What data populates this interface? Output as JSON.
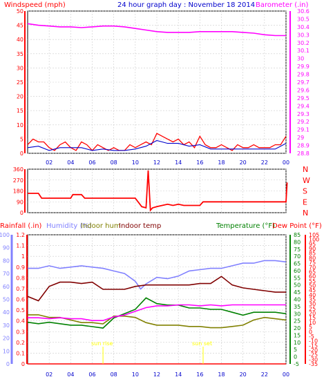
{
  "colors": {
    "wind": "#ff0000",
    "gust_blue": "#0000cc",
    "barometer": "#ff00ff",
    "humidity": "#8080ff",
    "indoor_hum": "#808000",
    "indoor_temp": "#800000",
    "temperature": "#008000",
    "dew_point": "#ff0000",
    "rainfall": "#ff0000",
    "grid": "#cccccc",
    "axis": "#000000",
    "title": "#0000cc",
    "sun_marker": "#ffff00"
  },
  "header": {
    "windspeed_label": "Windspeed (mph)",
    "title": "24 hour graph day : November 18 2014",
    "barometer_label": "Barometer (.in)"
  },
  "legend": {
    "rainfall": "Rainfall (.in)",
    "humidity": "Humidity (%)",
    "indoor_hum": "Indoor hum",
    "indoor_temp": "Indoor temp",
    "temperature": "Temperature (°F)",
    "dew_point": "Dew Point (°F)"
  },
  "x_ticks": [
    "02",
    "04",
    "06",
    "08",
    "10",
    "12",
    "14",
    "16",
    "18",
    "20",
    "22",
    "00"
  ],
  "markers": {
    "sunrise": "sun rise",
    "sunset": "sun set"
  },
  "chart_data": [
    {
      "type": "line",
      "title": "24 hour graph day : November 18 2014",
      "x_range": [
        0,
        24
      ],
      "y_left": {
        "label": "Windspeed (mph)",
        "range": [
          0,
          50
        ],
        "ticks": [
          "0",
          "5",
          "10",
          "15",
          "20",
          "25",
          "30",
          "35",
          "40",
          "45",
          "50"
        ]
      },
      "y_right": {
        "label": "Barometer (.in)",
        "range": [
          28.8,
          30.6
        ],
        "ticks": [
          "28.8",
          "28.9",
          "29",
          "29.1",
          "29.2",
          "29.3",
          "29.4",
          "29.5",
          "29.6",
          "29.7",
          "29.8",
          "29.9",
          "30",
          "30.1",
          "30.2",
          "30.3",
          "30.4",
          "30.5",
          "30.6"
        ]
      },
      "series": [
        {
          "name": "Windspeed (mph)",
          "axis": "left",
          "color": "#ff0000",
          "x": [
            0,
            0.5,
            1,
            1.5,
            2,
            2.5,
            3,
            3.5,
            4,
            4.5,
            5,
            5.5,
            6,
            6.5,
            7,
            7.5,
            8,
            8.5,
            9,
            9.5,
            10,
            10.5,
            11,
            11.5,
            12,
            12.5,
            13,
            13.5,
            14,
            14.5,
            15,
            15.5,
            16,
            16.5,
            17,
            17.5,
            18,
            18.5,
            19,
            19.5,
            20,
            20.5,
            21,
            21.5,
            22,
            22.5,
            23,
            23.5,
            24
          ],
          "y": [
            3,
            5,
            4,
            4,
            2,
            1,
            3,
            4,
            2,
            1,
            4,
            3,
            1,
            3,
            2,
            1,
            2,
            1,
            1,
            3,
            2,
            3,
            4,
            3,
            7,
            6,
            5,
            4,
            5,
            3,
            4,
            2,
            6,
            3,
            2,
            2,
            3,
            2,
            1,
            3,
            2,
            2,
            3,
            2,
            2,
            2,
            3,
            3,
            6
          ]
        },
        {
          "name": "",
          "axis": "left",
          "color": "#0000cc",
          "x": [
            0,
            1,
            2,
            3,
            4,
            5,
            6,
            7,
            8,
            9,
            10,
            11,
            12,
            13,
            14,
            15,
            16,
            17,
            18,
            19,
            20,
            21,
            22,
            23,
            24
          ],
          "y": [
            2,
            2.5,
            1,
            2,
            2,
            2,
            1,
            1.5,
            1,
            1,
            1.5,
            2.5,
            4.5,
            3.5,
            3.5,
            2.5,
            3,
            1.5,
            1.5,
            1.5,
            1.5,
            1.5,
            1.5,
            1.5,
            3.5
          ]
        },
        {
          "name": "Barometer (.in)",
          "axis": "right",
          "color": "#ff00ff",
          "x": [
            0,
            1,
            2,
            3,
            4,
            5,
            6,
            7,
            8,
            9,
            10,
            11,
            12,
            13,
            14,
            15,
            16,
            17,
            18,
            19,
            20,
            21,
            22,
            23,
            24
          ],
          "y": [
            30.44,
            30.42,
            30.41,
            30.4,
            30.4,
            30.39,
            30.4,
            30.41,
            30.41,
            30.4,
            30.38,
            30.36,
            30.34,
            30.33,
            30.33,
            30.33,
            30.34,
            30.34,
            30.34,
            30.34,
            30.33,
            30.32,
            30.3,
            30.29,
            30.29
          ]
        }
      ]
    },
    {
      "type": "line",
      "title": "",
      "x_range": [
        0,
        24
      ],
      "y_left": {
        "range": [
          0,
          360
        ],
        "ticks": [
          "0",
          "90",
          "180",
          "270",
          "360"
        ]
      },
      "y_right_labels": [
        "N",
        "W",
        "S",
        "E",
        "N"
      ],
      "series": [
        {
          "name": "",
          "color": "#ff0000",
          "x": [
            0,
            1,
            1.3,
            4,
            4.2,
            5,
            5.3,
            10,
            10.6,
            11,
            11.2,
            11.4,
            11.6,
            12,
            12.5,
            13,
            13.5,
            14,
            14.5,
            16,
            16.3,
            24,
            24.1
          ],
          "y": [
            160,
            160,
            120,
            120,
            150,
            150,
            120,
            120,
            50,
            40,
            350,
            20,
            40,
            50,
            60,
            70,
            60,
            70,
            60,
            60,
            90,
            90,
            250
          ]
        }
      ]
    },
    {
      "type": "line",
      "title": "",
      "x_range": [
        0,
        24
      ],
      "y_rainfall": {
        "label": "Rainfall (.in)",
        "range": [
          0,
          1.2
        ],
        "ticks": [
          "0",
          "0.1",
          "0.2",
          "0.3",
          "0.4",
          "0.5",
          "0.6",
          "0.7",
          "0.8",
          "0.9",
          "1",
          "1.1",
          "1.2"
        ]
      },
      "y_humidity": {
        "range": [
          0,
          100
        ],
        "ticks": [
          "0",
          "10",
          "20",
          "30",
          "40",
          "50",
          "60",
          "70",
          "80",
          "90",
          "100"
        ]
      },
      "y_temp": {
        "range": [
          -5,
          85
        ],
        "ticks": [
          "-5",
          "0",
          "5",
          "10",
          "15",
          "20",
          "25",
          "30",
          "35",
          "40",
          "45",
          "50",
          "55",
          "60",
          "65",
          "70",
          "75",
          "80",
          "85"
        ]
      },
      "y_dew": {
        "range": [
          -35,
          105
        ],
        "ticks": [
          "-35",
          "-30",
          "-25",
          "-20",
          "-15",
          "-10",
          "-5",
          "0",
          "5",
          "10",
          "15",
          "20",
          "25",
          "30",
          "35",
          "40",
          "45",
          "50",
          "55",
          "60",
          "65",
          "70",
          "75",
          "80",
          "85",
          "90",
          "95",
          "100",
          "105"
        ]
      },
      "series": [
        {
          "name": "Humidity (%)",
          "axis": "humidity",
          "color": "#8080ff",
          "x": [
            0,
            1,
            2,
            3,
            4,
            5,
            6,
            7,
            8,
            9,
            10,
            10.5,
            11,
            12,
            13,
            14,
            15,
            16,
            17,
            18,
            19,
            20,
            21,
            22,
            23,
            24
          ],
          "y": [
            74,
            74,
            76,
            74,
            75,
            76,
            75,
            74,
            72,
            70,
            64,
            58,
            62,
            67,
            66,
            68,
            72,
            73,
            74,
            74,
            76,
            78,
            78,
            80,
            80,
            79
          ]
        },
        {
          "name": "Indoor hum",
          "axis": "humidity",
          "color": "#808000",
          "x": [
            0,
            1,
            2,
            3,
            4,
            5,
            6,
            7,
            8,
            9,
            10,
            11,
            12,
            13,
            14,
            15,
            16,
            17,
            18,
            19,
            20,
            21,
            22,
            23,
            24
          ],
          "y": [
            38,
            38,
            36,
            36,
            34,
            32,
            32,
            31,
            37,
            37,
            36,
            32,
            30,
            30,
            30,
            29,
            29,
            28,
            28,
            29,
            30,
            34,
            36,
            35,
            34
          ]
        },
        {
          "name": "Indoor temp",
          "axis": "temp",
          "color": "#800000",
          "x": [
            0,
            1,
            2,
            3,
            4,
            5,
            6,
            7,
            8,
            9,
            10,
            11,
            12,
            13,
            14,
            15,
            16,
            17,
            18,
            19,
            20,
            21,
            22,
            23,
            24
          ],
          "y": [
            42,
            39,
            49,
            52,
            52,
            51,
            52,
            47,
            47,
            47,
            49,
            50,
            50,
            50,
            50,
            50,
            51,
            51,
            56,
            50,
            48,
            47,
            46,
            45,
            45
          ]
        },
        {
          "name": "Temperature (°F)",
          "axis": "temp",
          "color": "#008000",
          "x": [
            0,
            1,
            2,
            3,
            4,
            5,
            6,
            7,
            8,
            9,
            10,
            11,
            12,
            13,
            14,
            15,
            16,
            17,
            18,
            19,
            20,
            21,
            22,
            23,
            24
          ],
          "y": [
            24,
            23,
            24,
            23,
            22,
            22,
            21,
            20,
            27,
            30,
            33,
            41,
            37,
            36,
            36,
            34,
            34,
            33,
            33,
            31,
            29,
            31,
            31,
            31,
            30
          ]
        },
        {
          "name": "Dew Point (°F)",
          "axis": "dew",
          "color": "#ff00ff",
          "x": [
            0,
            1,
            2,
            3,
            4,
            5,
            6,
            7,
            8,
            9,
            10,
            11,
            12,
            13,
            14,
            15,
            16,
            17,
            18,
            19,
            20,
            21,
            22,
            23,
            24
          ],
          "y": [
            15,
            15,
            14,
            15,
            14,
            14,
            12,
            12,
            16,
            18,
            22,
            26,
            28,
            28,
            29,
            29,
            28,
            29,
            28,
            29,
            29,
            29,
            29,
            29,
            29
          ]
        },
        {
          "name": "Rainfall (.in)",
          "axis": "rainfall",
          "color": "#ff0000",
          "x": [
            0,
            24
          ],
          "y": [
            0,
            0
          ]
        }
      ],
      "markers": [
        {
          "label": "sun rise",
          "x": 7
        },
        {
          "label": "sun set",
          "x": 16.3
        }
      ]
    }
  ]
}
